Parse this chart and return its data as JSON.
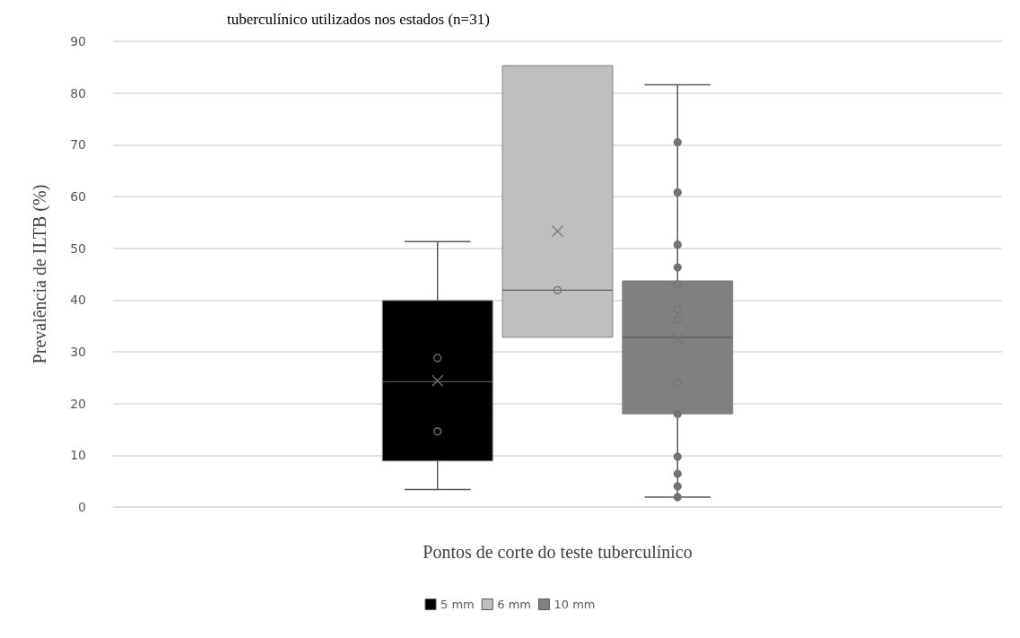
{
  "chart_data": {
    "type": "box",
    "title": "tuberculínico utilizados nos estados (n=31)",
    "xlabel": "Pontos de corte do teste tuberculínico",
    "ylabel": "Prevalência de ILTB (%)",
    "categories": [
      null
    ],
    "ylim": [
      0,
      90
    ],
    "yticks": [
      0,
      10,
      20,
      30,
      40,
      50,
      60,
      70,
      80,
      90
    ],
    "grid": "y",
    "legend": "bottom",
    "series": [
      {
        "name": "5 mm",
        "color": "#000000",
        "boxes": [
          {
            "low": 3.4,
            "q1": 8.9,
            "median": 24.2,
            "q3": 39.9,
            "high": 51.3,
            "mean": 24.4,
            "outliers": [
              28.8,
              14.6
            ]
          }
        ]
      },
      {
        "name": "6 mm",
        "color": "#bfbfbf",
        "boxes": [
          {
            "low": 32.8,
            "q1": 32.8,
            "median": 41.9,
            "q3": 85.3,
            "high": 85.3,
            "mean": 53.3,
            "outliers": [
              41.9
            ]
          }
        ]
      },
      {
        "name": "10 mm",
        "color": "#808080",
        "boxes": [
          {
            "low": 1.9,
            "q1": 18.0,
            "median": 32.8,
            "q3": 43.7,
            "high": 81.6,
            "mean": 32.5,
            "outliers": [
              70.5,
              60.8,
              50.7,
              46.3,
              43.0,
              38.2,
              36.2,
              24.0,
              18.0,
              9.7,
              6.4,
              4.0,
              1.9
            ]
          }
        ]
      }
    ]
  }
}
